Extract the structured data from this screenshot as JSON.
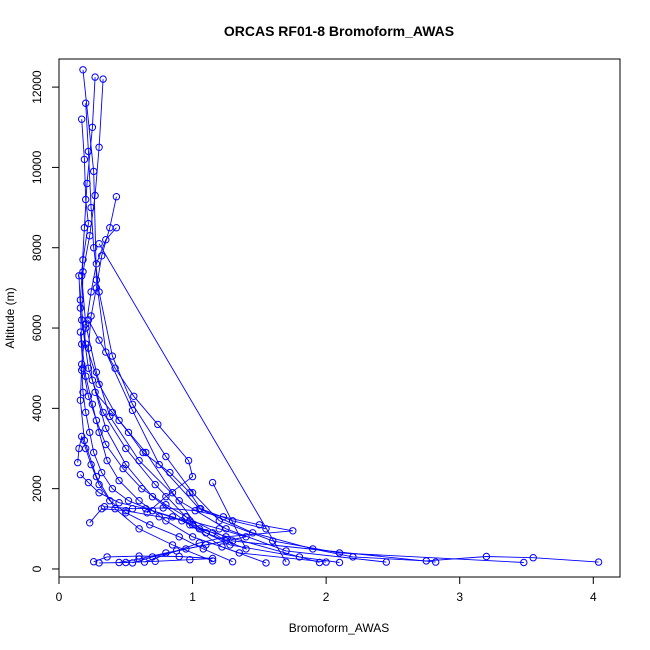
{
  "chart_data": {
    "type": "line",
    "title": "ORCAS RF01-8 Bromoform_AWAS",
    "xlabel": "Bromoform_AWAS",
    "ylabel": "Altitude (m)",
    "xlim": [
      0,
      4.2
    ],
    "ylim": [
      -200,
      12700
    ],
    "x_ticks": [
      0,
      1,
      2,
      3,
      4
    ],
    "y_ticks": [
      0,
      2000,
      4000,
      6000,
      8000,
      10000,
      12000
    ],
    "grid": false,
    "marker": "open-circle",
    "series_color": "#0000ff",
    "series": [
      {
        "x": [
          0.18,
          0.26,
          0.28,
          0.35,
          0.55,
          0.75,
          1.05,
          1.45,
          1.9,
          2.2,
          2.75,
          3.2,
          3.55,
          4.04
        ],
        "y": [
          12430,
          9900,
          7200,
          5400,
          3950,
          2600,
          1500,
          900,
          500,
          300,
          200,
          310,
          280,
          170
        ]
      },
      {
        "x": [
          0.2,
          0.22,
          0.24,
          0.26,
          0.3,
          0.4,
          0.55,
          0.8,
          1.0,
          1.2,
          1.6,
          2.1,
          3.48
        ],
        "y": [
          11600,
          10400,
          9000,
          8000,
          6900,
          5300,
          4100,
          2800,
          1900,
          1200,
          700,
          400,
          160
        ]
      },
      {
        "x": [
          0.27,
          0.25,
          0.21,
          0.19,
          0.17,
          0.2,
          0.28,
          0.38,
          0.6,
          0.9,
          1.25,
          1.7,
          2.45
        ],
        "y": [
          12250,
          11000,
          9600,
          8500,
          7300,
          6100,
          4900,
          3800,
          2700,
          1700,
          1000,
          450,
          170
        ]
      },
      {
        "x": [
          0.33,
          0.3,
          0.27,
          0.23,
          0.18,
          0.17,
          0.22,
          0.33,
          0.5,
          0.72,
          0.95,
          1.3,
          2.82
        ],
        "y": [
          12200,
          10500,
          9300,
          8300,
          7400,
          6200,
          5000,
          3900,
          3000,
          2100,
          1300,
          700,
          170
        ]
      },
      {
        "x": [
          0.17,
          0.19,
          0.2,
          0.22,
          0.18,
          0.16,
          0.2,
          0.3,
          0.45,
          0.65,
          0.85,
          1.05,
          1.95
        ],
        "y": [
          11200,
          10200,
          9200,
          8600,
          7700,
          6700,
          5600,
          4600,
          3700,
          2900,
          1900,
          1000,
          160
        ]
      },
      {
        "x": [
          0.43,
          0.38,
          0.32,
          0.28,
          0.24,
          0.22,
          0.25,
          0.35,
          0.5,
          0.7,
          0.98,
          1.22,
          1.55
        ],
        "y": [
          9270,
          8500,
          7800,
          7000,
          6300,
          5500,
          4700,
          3500,
          2600,
          1800,
          1100,
          550,
          150
        ]
      },
      {
        "x": [
          0.43,
          0.35,
          0.28,
          0.24,
          0.2,
          0.17,
          0.16,
          0.19,
          0.28,
          0.42,
          0.6,
          0.85,
          1.15
        ],
        "y": [
          8500,
          8200,
          7600,
          6900,
          6000,
          5100,
          4200,
          3200,
          2300,
          1500,
          1000,
          600,
          200
        ]
      },
      {
        "x": [
          0.3,
          1.7
        ],
        "y": [
          8100,
          170
        ]
      },
      {
        "x": [
          0.15,
          0.16,
          0.17,
          0.2,
          0.25,
          0.3,
          0.36,
          0.45,
          0.6,
          0.8,
          1.0,
          1.35,
          2.0
        ],
        "y": [
          7300,
          6500,
          5600,
          4800,
          4100,
          3400,
          2700,
          2200,
          1700,
          1200,
          800,
          400,
          170
        ]
      },
      {
        "x": [
          0.16,
          0.18,
          0.22,
          0.28,
          0.35,
          0.48,
          0.62,
          0.8,
          0.95,
          1.1,
          1.28,
          1.8,
          2.1
        ],
        "y": [
          5900,
          5000,
          4300,
          3700,
          3100,
          2500,
          2000,
          1600,
          1300,
          900,
          600,
          300,
          160
        ]
      },
      {
        "x": [
          0.17,
          0.18,
          0.2,
          0.23,
          0.26,
          0.32,
          0.4,
          0.52,
          0.7,
          0.92,
          1.1,
          1.4,
          1.15
        ],
        "y": [
          4950,
          4400,
          3900,
          3400,
          2900,
          2400,
          2000,
          1700,
          1450,
          1200,
          900,
          500,
          2150
        ]
      },
      {
        "x": [
          0.14,
          0.15,
          0.17,
          0.2,
          0.24,
          0.3,
          0.38,
          0.5,
          0.68,
          0.9,
          1.08,
          1.3
        ],
        "y": [
          2650,
          3000,
          3300,
          3000,
          2600,
          2100,
          1700,
          1400,
          1100,
          800,
          500,
          180
        ]
      },
      {
        "x": [
          0.16,
          0.22,
          0.3,
          0.45,
          0.65,
          0.85,
          1.0,
          1.15,
          1.25,
          0.95,
          0.7,
          0.55
        ],
        "y": [
          2350,
          2150,
          1900,
          1650,
          1500,
          1300,
          1100,
          900,
          700,
          500,
          300,
          150
        ]
      },
      {
        "x": [
          0.23,
          0.32,
          0.5,
          0.75,
          0.98,
          1.2,
          1.4,
          1.1,
          0.8,
          0.6,
          0.45
        ],
        "y": [
          1150,
          1500,
          1450,
          1300,
          1200,
          1000,
          800,
          600,
          400,
          250,
          160
        ]
      },
      {
        "x": [
          0.26,
          0.36,
          0.6,
          0.9,
          1.15,
          0.98,
          0.72,
          0.5,
          0.3
        ],
        "y": [
          180,
          300,
          320,
          310,
          260,
          230,
          190,
          160,
          150
        ]
      },
      {
        "x": [
          0.34,
          0.55,
          0.78,
          1.02,
          1.23,
          1.5,
          1.75,
          1.25,
          1.05,
          0.88,
          0.64
        ],
        "y": [
          1550,
          1500,
          1520,
          1450,
          1300,
          1100,
          950,
          800,
          650,
          450,
          170
        ]
      },
      {
        "x": [
          0.27,
          0.4,
          0.52,
          0.63,
          0.83,
          0.98,
          1.06,
          1.3,
          1.55
        ],
        "y": [
          4400,
          3900,
          3400,
          2900,
          2400,
          1900,
          1500,
          1200,
          1000
        ]
      },
      {
        "x": [
          0.22,
          0.3,
          0.42,
          0.56,
          0.74,
          0.97,
          1.0,
          0.8,
          0.66
        ],
        "y": [
          6200,
          5700,
          5000,
          4300,
          3600,
          2700,
          2300,
          1800,
          1400
        ]
      }
    ]
  }
}
